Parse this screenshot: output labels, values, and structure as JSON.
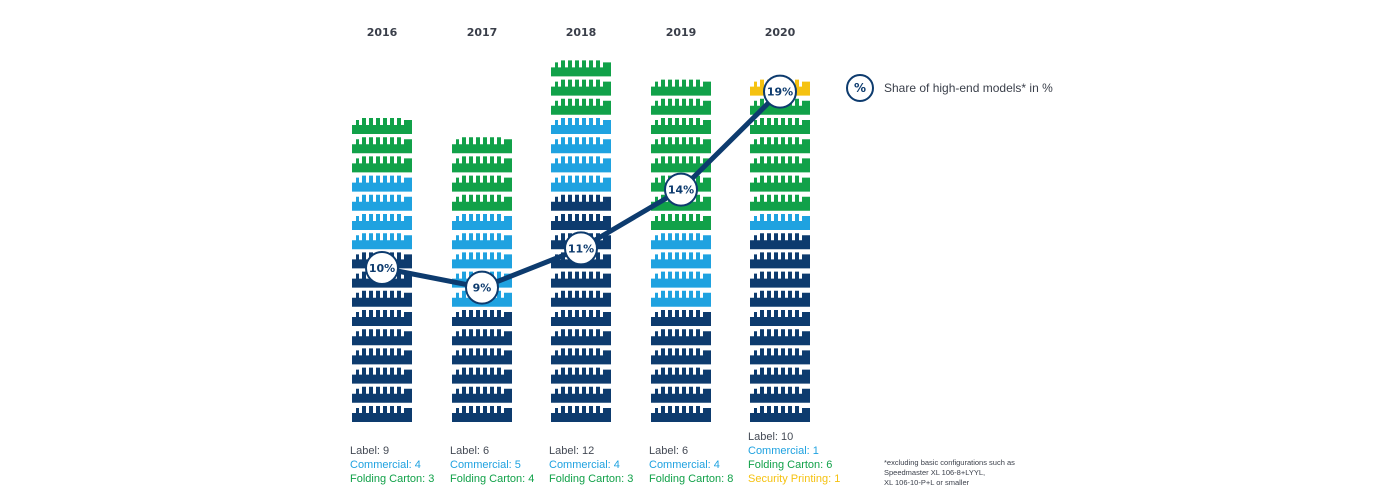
{
  "chart_data": {
    "type": "bar",
    "title": "",
    "categories": [
      "2016",
      "2017",
      "2018",
      "2019",
      "2020"
    ],
    "series": [
      {
        "name": "Label",
        "color": "#0d3b6e",
        "values": [
          9,
          6,
          12,
          6,
          10
        ]
      },
      {
        "name": "Commercial",
        "color": "#1fa2e0",
        "values": [
          4,
          5,
          4,
          4,
          1
        ]
      },
      {
        "name": "Folding Carton",
        "color": "#11a149",
        "values": [
          3,
          4,
          3,
          8,
          6
        ]
      },
      {
        "name": "Security Printing",
        "color": "#f5c211",
        "values": [
          0,
          0,
          0,
          0,
          1
        ]
      }
    ],
    "line": {
      "name": "Share of high-end models* in %",
      "values": [
        10,
        9,
        11,
        14,
        19
      ],
      "labels": [
        "10%",
        "9%",
        "11%",
        "14%",
        "19%"
      ]
    },
    "legend_symbol": "%",
    "footnote": [
      "*excluding basic configurations such as",
      "Speedmaster XL 106-8+LYYL,",
      "XL 106-10-P+L or smaller"
    ]
  },
  "category_labels": [
    {
      "lines": [
        {
          "text": "Label: 9",
          "cls": "label"
        },
        {
          "text": "Commercial: 4",
          "color": "#1fa2e0"
        },
        {
          "text": "Folding Carton: 3",
          "color": "#11a149"
        }
      ]
    },
    {
      "lines": [
        {
          "text": "Label: 6",
          "cls": "label"
        },
        {
          "text": "Commercial: 5",
          "color": "#1fa2e0"
        },
        {
          "text": "Folding Carton: 4",
          "color": "#11a149"
        }
      ]
    },
    {
      "lines": [
        {
          "text": "Label: 12",
          "cls": "label"
        },
        {
          "text": "Commercial: 4",
          "color": "#1fa2e0"
        },
        {
          "text": "Folding Carton: 3",
          "color": "#11a149"
        }
      ]
    },
    {
      "lines": [
        {
          "text": "Label: 6",
          "cls": "label"
        },
        {
          "text": "Commercial: 4",
          "color": "#1fa2e0"
        },
        {
          "text": "Folding Carton: 8",
          "color": "#11a149"
        }
      ]
    },
    {
      "lines": [
        {
          "text": "Label: 10",
          "cls": "label"
        },
        {
          "text": "Commercial: 1",
          "color": "#1fa2e0"
        },
        {
          "text": "Folding Carton: 6",
          "color": "#11a149"
        },
        {
          "text": "Security Printing: 1",
          "color": "#f5c211"
        }
      ]
    }
  ]
}
